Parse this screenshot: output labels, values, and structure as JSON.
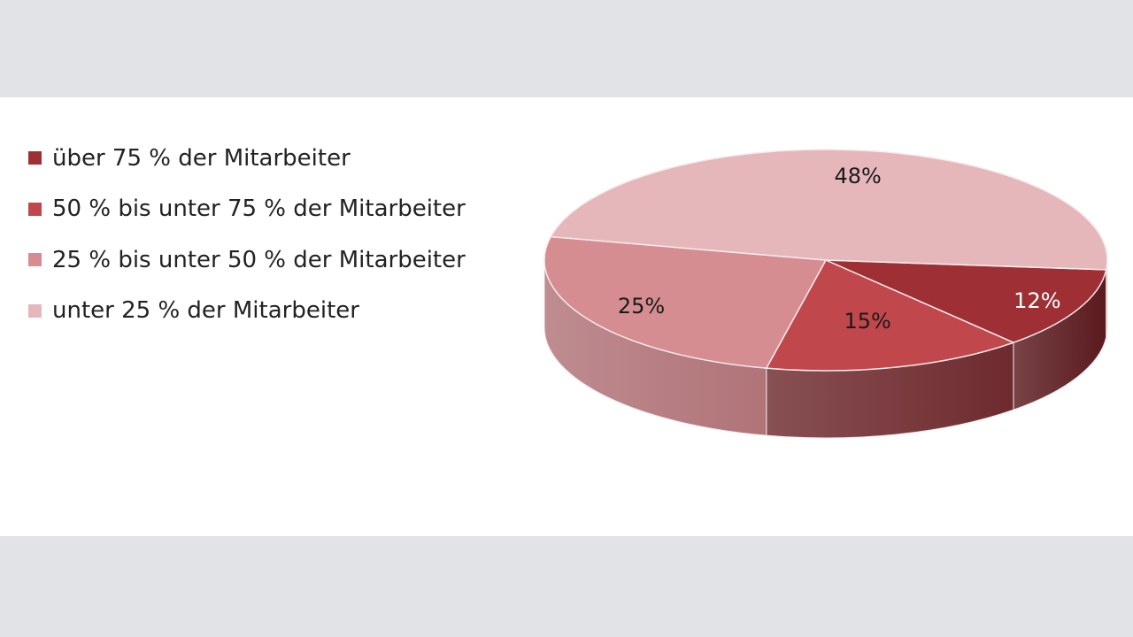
{
  "chart_data": {
    "type": "pie",
    "title": "",
    "legend_position": "left",
    "slices": [
      {
        "label": "über 75 % der Mitarbeiter",
        "value": 12,
        "value_label": "12%",
        "color": "#9e3035",
        "side_color": "#5a1a1e",
        "label_color": "#ffffff"
      },
      {
        "label": "50 % bis unter 75 % der Mitarbeiter",
        "value": 15,
        "value_label": "15%",
        "color": "#c0484d",
        "side_color": "#6e2a2e",
        "label_color": "#1a1a1a"
      },
      {
        "label": "25 % bis unter 50 % der Mitarbeiter",
        "value": 25,
        "value_label": "25%",
        "color": "#d58d91",
        "side_color": "#b07378",
        "label_color": "#1a1a1a"
      },
      {
        "label": "unter 25 % der Mitarbeiter",
        "value": 48,
        "value_label": "48%",
        "color": "#e6b7ba",
        "side_color": "#c29598",
        "label_color": "#1a1a1a"
      }
    ]
  }
}
